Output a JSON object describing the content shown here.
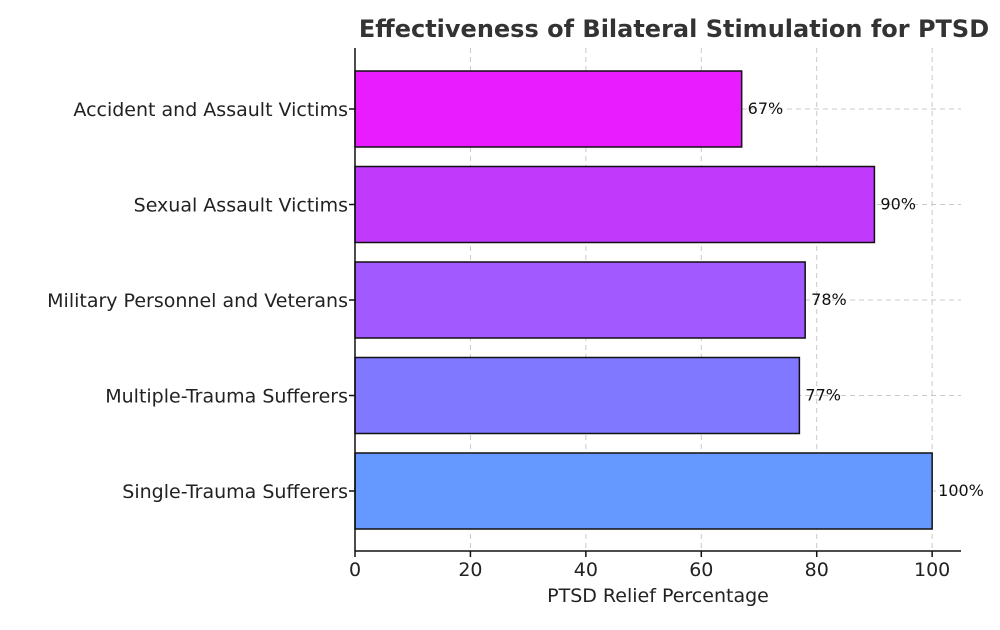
{
  "chart_data": {
    "type": "bar",
    "orientation": "horizontal",
    "title": "Effectiveness of Bilateral Stimulation for PTSD",
    "xlabel": "PTSD Relief Percentage",
    "ylabel": "",
    "categories": [
      "Accident and Assault Victims",
      "Sexual Assault Victims",
      "Military Personnel and Veterans",
      "Multiple-Trauma Sufferers",
      "Single-Trauma Sufferers"
    ],
    "values": [
      67,
      90,
      78,
      77,
      100
    ],
    "value_labels": [
      "67%",
      "90%",
      "78%",
      "77%",
      "100%"
    ],
    "colors": [
      "#e81cff",
      "#c13afc",
      "#a259ff",
      "#8078ff",
      "#6699ff"
    ],
    "xlim": [
      0,
      105
    ],
    "xticks": [
      0,
      20,
      40,
      60,
      80,
      100
    ],
    "grid": true,
    "legend": "none"
  }
}
